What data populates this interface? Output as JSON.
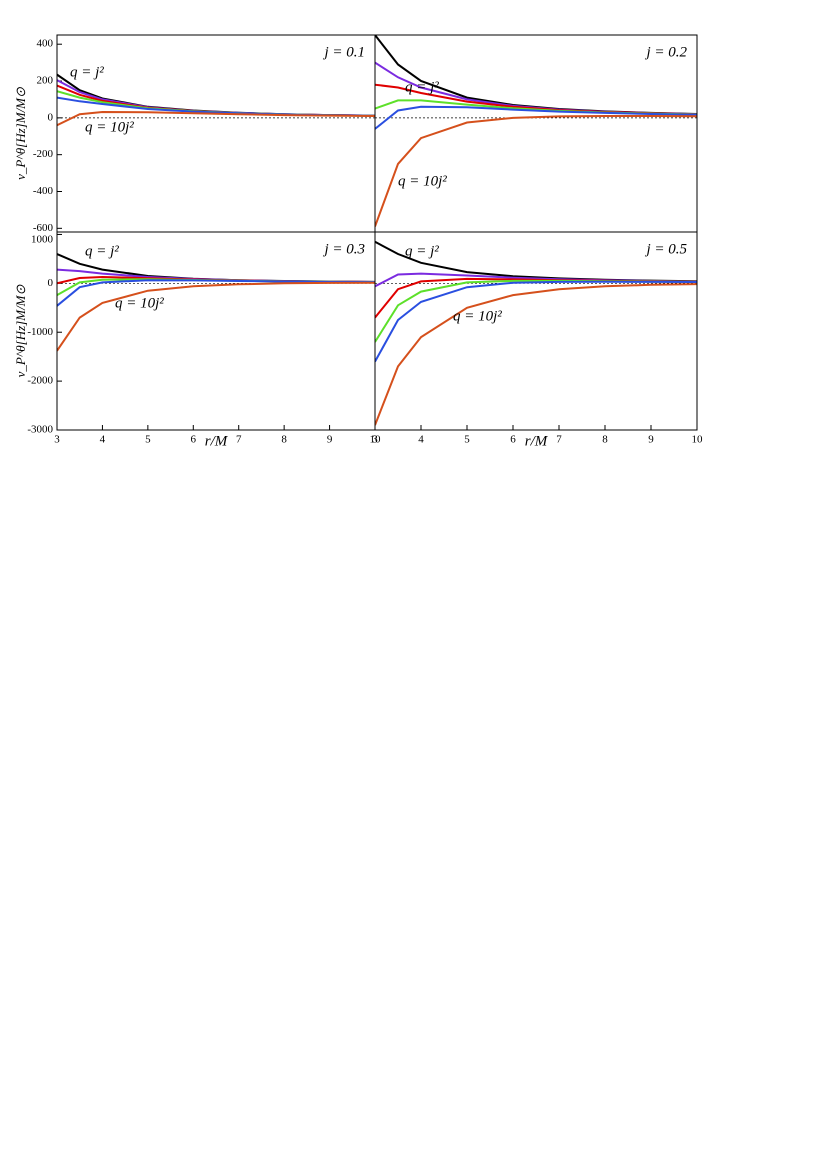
{
  "chart_data": [
    {
      "type": "line",
      "title": "j = 0.1",
      "y_label": "ν_P^θ[Hz]M/M⊙",
      "annotations": [
        "q = j²",
        "q = 10j²"
      ],
      "zero_line": true,
      "x": [
        3,
        3.5,
        4,
        5,
        6,
        7,
        8,
        9,
        10
      ],
      "xlim": [
        3,
        10
      ],
      "ylim": [
        -620,
        450
      ],
      "yticks": [
        400,
        200,
        0,
        -200,
        -400,
        -600
      ],
      "series": [
        {
          "color": "#000000",
          "values": [
            235,
            150,
            105,
            60,
            40,
            28,
            20,
            15,
            12
          ]
        },
        {
          "color": "#7b2be0",
          "values": [
            205,
            140,
            100,
            58,
            38,
            27,
            20,
            15,
            12
          ]
        },
        {
          "color": "#e00000",
          "values": [
            175,
            125,
            92,
            55,
            37,
            26,
            19,
            15,
            11
          ]
        },
        {
          "color": "#5de02a",
          "values": [
            145,
            110,
            85,
            52,
            36,
            26,
            19,
            14,
            11
          ]
        },
        {
          "color": "#2a4fe0",
          "values": [
            110,
            90,
            75,
            48,
            34,
            25,
            18,
            14,
            11
          ]
        },
        {
          "color": "#d5501c",
          "values": [
            -40,
            20,
            32,
            30,
            25,
            20,
            15,
            12,
            10
          ]
        }
      ]
    },
    {
      "type": "line",
      "title": "j = 0.2",
      "annotations": [
        "q = j²",
        "q = 10j²"
      ],
      "zero_line": true,
      "x": [
        3,
        3.5,
        4,
        5,
        6,
        7,
        8,
        9,
        10
      ],
      "xlim": [
        3,
        10
      ],
      "ylim": [
        -620,
        450
      ],
      "series": [
        {
          "color": "#000000",
          "values": [
            450,
            290,
            200,
            110,
            70,
            48,
            35,
            27,
            21
          ]
        },
        {
          "color": "#7b2be0",
          "values": [
            300,
            220,
            165,
            100,
            65,
            45,
            33,
            26,
            20
          ]
        },
        {
          "color": "#e00000",
          "values": [
            180,
            165,
            135,
            88,
            60,
            42,
            32,
            25,
            19
          ]
        },
        {
          "color": "#5de02a",
          "values": [
            50,
            95,
            95,
            72,
            52,
            38,
            29,
            23,
            18
          ]
        },
        {
          "color": "#2a4fe0",
          "values": [
            -60,
            40,
            60,
            58,
            45,
            34,
            27,
            21,
            17
          ]
        },
        {
          "color": "#d5501c",
          "values": [
            -590,
            -250,
            -110,
            -25,
            0,
            8,
            10,
            10,
            9
          ]
        }
      ]
    },
    {
      "type": "line",
      "title": "j = 0.3",
      "y_label": "ν_P^θ[Hz]M/M⊙",
      "x_label": "r/M",
      "annotations": [
        "q = j²",
        "q = 10j²"
      ],
      "zero_line": true,
      "x": [
        3,
        3.5,
        4,
        5,
        6,
        7,
        8,
        9,
        10
      ],
      "xlim": [
        3,
        10
      ],
      "ylim": [
        -3000,
        1050
      ],
      "xticks": [
        3,
        4,
        5,
        6,
        7,
        8,
        9,
        10
      ],
      "yticks": [
        1000,
        0,
        -1000,
        -2000,
        -3000
      ],
      "series": [
        {
          "color": "#000000",
          "values": [
            600,
            400,
            280,
            150,
            95,
            65,
            48,
            37,
            29
          ]
        },
        {
          "color": "#7b2be0",
          "values": [
            280,
            250,
            200,
            130,
            88,
            62,
            46,
            36,
            28
          ]
        },
        {
          "color": "#e00000",
          "values": [
            0,
            110,
            130,
            105,
            78,
            57,
            43,
            34,
            27
          ]
        },
        {
          "color": "#5de02a",
          "values": [
            -240,
            20,
            75,
            85,
            68,
            52,
            40,
            32,
            26
          ]
        },
        {
          "color": "#2a4fe0",
          "values": [
            -460,
            -80,
            20,
            65,
            60,
            48,
            38,
            30,
            25
          ]
        },
        {
          "color": "#d5501c",
          "values": [
            -1380,
            -700,
            -400,
            -150,
            -60,
            -20,
            0,
            8,
            12
          ]
        }
      ]
    },
    {
      "type": "line",
      "title": "j = 0.5",
      "x_label": "r/M",
      "annotations": [
        "q = j²",
        "q = 10j²"
      ],
      "zero_line": true,
      "x": [
        3,
        3.5,
        4,
        5,
        6,
        7,
        8,
        9,
        10
      ],
      "xlim": [
        3,
        10
      ],
      "ylim": [
        -3000,
        1050
      ],
      "xticks": [
        3,
        4,
        5,
        6,
        7,
        8,
        9,
        10
      ],
      "series": [
        {
          "color": "#000000",
          "values": [
            850,
            600,
            420,
            230,
            145,
            100,
            72,
            55,
            43
          ]
        },
        {
          "color": "#7b2be0",
          "values": [
            -60,
            180,
            200,
            160,
            115,
            82,
            62,
            48,
            38
          ]
        },
        {
          "color": "#e00000",
          "values": [
            -700,
            -120,
            40,
            90,
            80,
            65,
            52,
            42,
            34
          ]
        },
        {
          "color": "#5de02a",
          "values": [
            -1200,
            -450,
            -170,
            20,
            50,
            50,
            42,
            36,
            30
          ]
        },
        {
          "color": "#2a4fe0",
          "values": [
            -1600,
            -750,
            -380,
            -80,
            10,
            30,
            32,
            30,
            27
          ]
        },
        {
          "color": "#d5501c",
          "values": [
            -2900,
            -1700,
            -1100,
            -500,
            -240,
            -120,
            -60,
            -30,
            -15
          ]
        }
      ]
    }
  ]
}
